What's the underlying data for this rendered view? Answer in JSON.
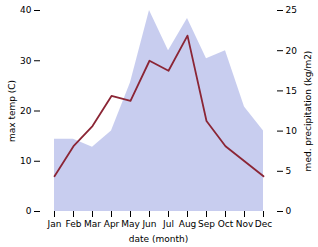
{
  "chart_data": {
    "type": "line",
    "categories": [
      "Jan",
      "Feb",
      "Mar",
      "Apr",
      "May",
      "Jun",
      "Jul",
      "Aug",
      "Sep",
      "Oct",
      "Nov",
      "Dec"
    ],
    "xlabel": "date (month)",
    "ylabel": "max temp (C)",
    "y2label": "med. precipitation (kg/m2)",
    "ylim": [
      0,
      40
    ],
    "yticks": [
      0,
      10,
      20,
      30,
      40
    ],
    "y2lim": [
      0,
      25
    ],
    "y2ticks": [
      0,
      5,
      10,
      15,
      20,
      25
    ],
    "series": [
      {
        "type": "area",
        "axis": "y2",
        "color": "#b0b8e8",
        "values": [
          9,
          9,
          8,
          10,
          16,
          25,
          20,
          24,
          19,
          20,
          13,
          10
        ]
      },
      {
        "type": "line",
        "color": "#8b2535",
        "values": [
          7,
          13,
          17,
          23,
          22,
          30,
          28,
          35,
          18,
          13,
          10,
          7
        ]
      }
    ]
  }
}
